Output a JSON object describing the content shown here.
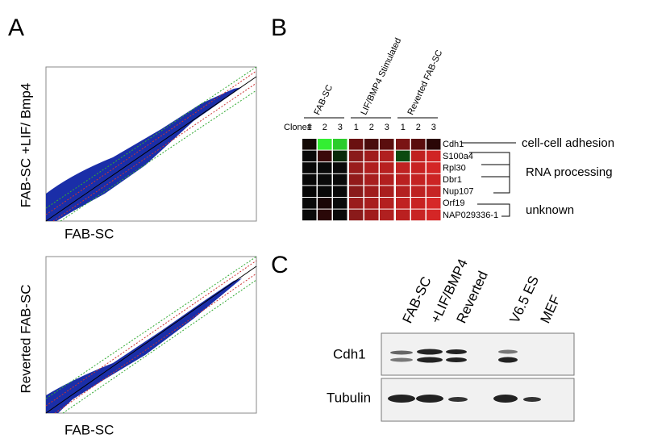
{
  "panels": {
    "A": {
      "label": "A",
      "plots": [
        {
          "ylabel": "FAB-SC +LIF/ Bmp4",
          "xlabel": "FAB-SC"
        },
        {
          "ylabel": "Reverted FAB-SC",
          "xlabel": "FAB-SC"
        }
      ]
    },
    "B": {
      "label": "B",
      "groups": [
        "FAB-SC",
        "LIF/BMP4 Stimulated",
        "Reverted FAB-SC"
      ],
      "row_header": "Clone#",
      "clones": [
        "1",
        "2",
        "3"
      ],
      "genes": [
        "Cdh1",
        "S100a4",
        "Rpl30",
        "Dbr1",
        "Nup107",
        "Orf19",
        "NAP029336-1"
      ],
      "annotations": [
        "cell-cell adhesion",
        "RNA processing",
        "unknown"
      ],
      "colors": [
        [
          "#140a05",
          "#33ee33",
          "#2ccc2c",
          "#6a1010",
          "#4a0c0c",
          "#5a0e0e",
          "#7a1414",
          "#5a0e0e",
          "#2a0606"
        ],
        [
          "#0a0a0a",
          "#3a0a0a",
          "#0a2a0a",
          "#8a1a1a",
          "#a01c1c",
          "#b02020",
          "#0c4a10",
          "#c02020",
          "#d02424"
        ],
        [
          "#080808",
          "#0a0a0a",
          "#0a0a0a",
          "#9a1c1c",
          "#b01f1f",
          "#b82020",
          "#c02222",
          "#c82222",
          "#d42626"
        ],
        [
          "#080808",
          "#0a0a0a",
          "#0a0a0a",
          "#921a1a",
          "#a81e1e",
          "#b21f1f",
          "#ba2020",
          "#c42222",
          "#cc2424"
        ],
        [
          "#060606",
          "#080808",
          "#080808",
          "#8a1a1a",
          "#a01c1c",
          "#aa1e1e",
          "#b42020",
          "#be2222",
          "#c62424"
        ],
        [
          "#0a0a0a",
          "#1a0606",
          "#0a0a0a",
          "#9a1c1c",
          "#a81e1e",
          "#b42020",
          "#c02222",
          "#c82222",
          "#d62828"
        ],
        [
          "#0a0a0a",
          "#2a0808",
          "#0a0a0a",
          "#8a1a1a",
          "#a01c1c",
          "#b02020",
          "#ba2020",
          "#c82424",
          "#d42626"
        ]
      ]
    },
    "C": {
      "label": "C",
      "lanes": [
        "FAB-SC",
        "+LIF/BMP4",
        "Reverted",
        "V6.5 ES",
        "MEF"
      ],
      "bands": [
        "Cdh1",
        "Tubulin"
      ]
    }
  }
}
